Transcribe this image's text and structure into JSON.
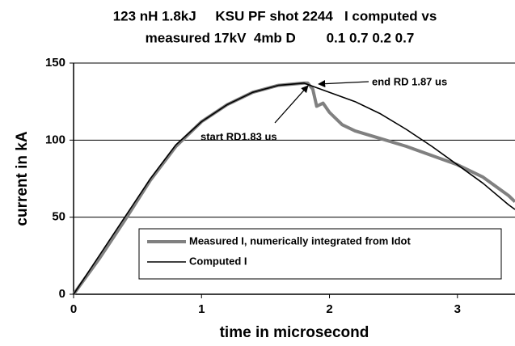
{
  "chart_data": {
    "type": "line",
    "title": [
      "123 nH 1.8kJ     KSU PF shot 2244   I computed vs",
      "measured 17kV  4mb D        0.1 0.7 0.2 0.7"
    ],
    "xlabel": "time in microsecond",
    "ylabel": "current in kA",
    "xlim": [
      0,
      3.45
    ],
    "ylim": [
      0,
      150
    ],
    "xticks": [
      0,
      1,
      2,
      3
    ],
    "yticks": [
      0,
      50,
      100,
      150
    ],
    "grid": true,
    "annotations": [
      "end RD 1.87 us",
      "start RD1.83 us"
    ],
    "series": [
      {
        "name": "Measured I, numerically integrated from Idot",
        "color": "#808080",
        "x": [
          0,
          0.2,
          0.4,
          0.6,
          0.8,
          1.0,
          1.2,
          1.4,
          1.6,
          1.8,
          1.83,
          1.87,
          1.9,
          1.95,
          2.0,
          2.1,
          2.2,
          2.4,
          2.6,
          2.8,
          3.0,
          3.2,
          3.4,
          3.45
        ],
        "values": [
          0,
          23,
          48,
          74,
          96,
          112,
          123,
          131,
          135.5,
          137,
          137,
          133,
          122,
          124,
          118,
          110,
          106,
          101,
          96,
          90,
          84,
          76,
          64,
          60
        ]
      },
      {
        "name": "Computed I",
        "color": "#000000",
        "x": [
          0,
          0.2,
          0.4,
          0.6,
          0.8,
          1.0,
          1.2,
          1.4,
          1.6,
          1.8,
          2.0,
          2.2,
          2.4,
          2.6,
          2.8,
          3.0,
          3.2,
          3.4,
          3.45
        ],
        "values": [
          0,
          25,
          50,
          75,
          97,
          112,
          123,
          131,
          135.5,
          137,
          131,
          125,
          117,
          107,
          96,
          84,
          72,
          58,
          55
        ]
      }
    ]
  }
}
